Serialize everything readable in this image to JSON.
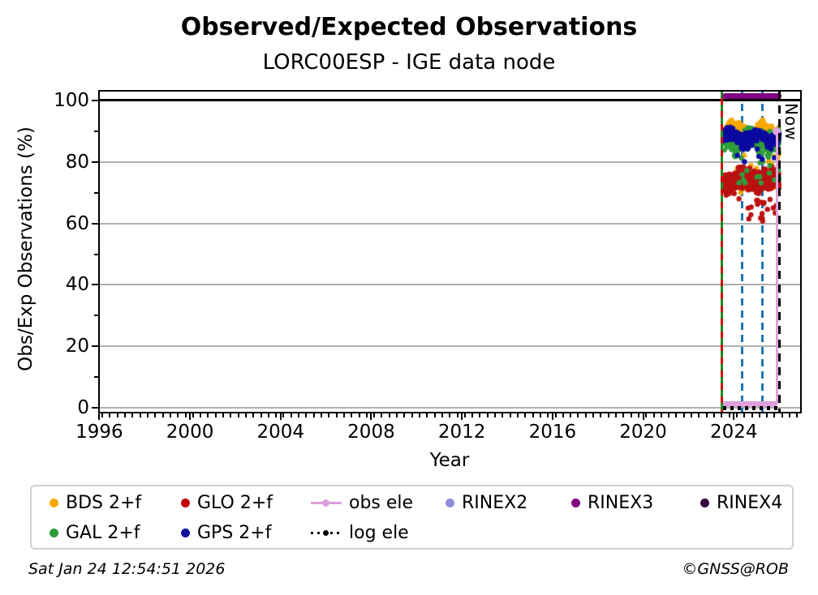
{
  "header": {
    "title": "Observed/Expected Observations",
    "subtitle": "LORC00ESP - IGE data node"
  },
  "footer": {
    "timestamp": "Sat Jan 24 12:54:51 2026",
    "credit": "©GNSS@ROB"
  },
  "chart_data": {
    "type": "scatter",
    "title": "Observed/Expected Observations",
    "subtitle": "LORC00ESP - IGE data node",
    "xlabel": "Year",
    "ylabel": "Obs/Exp Observations (%)",
    "xlim": [
      1995.95,
      2027.0
    ],
    "ylim": [
      -1.8,
      103.4
    ],
    "x_major_ticks": [
      1996,
      2000,
      2004,
      2008,
      2012,
      2016,
      2020,
      2024
    ],
    "x_minor_step": 0.3333,
    "y_major_ticks": [
      0,
      20,
      40,
      60,
      80,
      100
    ],
    "y_minor_ticks": [
      10,
      30,
      50,
      70,
      90
    ],
    "grid": "horizontal major gridlines, gray",
    "reference_line_y": 100,
    "legend_position": "below plot, 2 rows",
    "data_period": "station data only from mid-2023 to Jan 2026; 1996-2023 empty",
    "series": [
      {
        "name": "BDS 2+f",
        "color": "#f6a800",
        "marker": "dot",
        "band": {
          "x_range": [
            2023.53,
            2026.0
          ],
          "y_mean": 90,
          "y_typical_range": [
            84,
            94
          ],
          "spread": 2.2,
          "count": 230,
          "seed": 11,
          "outliers": {
            "count": 22,
            "y_range": [
              70,
              86
            ]
          }
        }
      },
      {
        "name": "GLO 2+f",
        "color": "#bb1111",
        "marker": "dot",
        "band": {
          "x_range": [
            2023.53,
            2026.0
          ],
          "y_mean": 74,
          "y_typical_range": [
            66,
            80
          ],
          "spread": 3.0,
          "count": 300,
          "seed": 22,
          "outliers": {
            "count": 20,
            "y_range": [
              60,
              68
            ]
          }
        }
      },
      {
        "name": "GAL 2+f",
        "color": "#2e9e3a",
        "marker": "dot",
        "band": {
          "x_range": [
            2023.53,
            2026.0
          ],
          "y_mean": 86.5,
          "y_typical_range": [
            80,
            93
          ],
          "spread": 3.0,
          "count": 230,
          "seed": 33,
          "outliers": {
            "count": 18,
            "y_range": [
              72,
              82
            ]
          }
        }
      },
      {
        "name": "GPS 2+f",
        "color": "#0a0aa0",
        "marker": "dot",
        "band": {
          "x_range": [
            2023.53,
            2026.0
          ],
          "y_mean": 88,
          "y_typical_range": [
            85,
            91
          ],
          "spread": 1.8,
          "count": 300,
          "seed": 44,
          "outliers": {
            "count": 8,
            "y_range": [
              80,
              85
            ]
          }
        }
      }
    ],
    "annotations": {
      "now_line": {
        "x": 2026.03,
        "label": "Now",
        "style": "black-dashed"
      },
      "event_lines": [
        {
          "x": 2023.49,
          "style": "green-red-dashed"
        },
        {
          "x": 2024.35,
          "style": "blue-dashed"
        },
        {
          "x": 2025.25,
          "style": "blue-dashed"
        }
      ],
      "rinex3_interval": {
        "y": 101.5,
        "x_range": [
          2023.49,
          2026.1
        ],
        "color": "#800080"
      },
      "obs_ele": {
        "baseline_y": 1.2,
        "x_range": [
          2023.52,
          2025.89
        ],
        "last_point": {
          "x": 2025.89,
          "y": 90
        },
        "color": "#dda0dd"
      },
      "log_ele": {
        "y": 0,
        "x_range": [
          2023.52,
          2026.05
        ],
        "color": "#000000"
      }
    },
    "colors": {
      "grid": "#b0b0b0",
      "event_blue": "#1f77b4",
      "event_green": "#1e8c1e",
      "event_red": "#cc1111"
    }
  },
  "legend": {
    "items": [
      {
        "label": "BDS 2+f",
        "marker": "dot",
        "color": "#f6a800",
        "col": 0,
        "row": 0
      },
      {
        "label": "GAL 2+f",
        "marker": "dot",
        "color": "#2e9e3a",
        "col": 0,
        "row": 1
      },
      {
        "label": "GLO 2+f",
        "marker": "dot",
        "color": "#c00000",
        "col": 1,
        "row": 0
      },
      {
        "label": "GPS 2+f",
        "marker": "dot",
        "color": "#1212a0",
        "col": 1,
        "row": 1
      },
      {
        "label": "obs ele",
        "marker": "line-dot",
        "color": "#dda0dd",
        "col": 2,
        "row": 0
      },
      {
        "label": "log ele",
        "marker": "dotted-line",
        "color": "#000000",
        "col": 2,
        "row": 1
      },
      {
        "label": "RINEX2",
        "marker": "dot",
        "color": "#8f8fd8",
        "col": 3,
        "row": 0
      },
      {
        "label": "RINEX3",
        "marker": "dot",
        "color": "#800080",
        "col": 4,
        "row": 0
      },
      {
        "label": "RINEX4",
        "marker": "dot",
        "color": "#33083c",
        "col": 5,
        "row": 0
      }
    ]
  }
}
